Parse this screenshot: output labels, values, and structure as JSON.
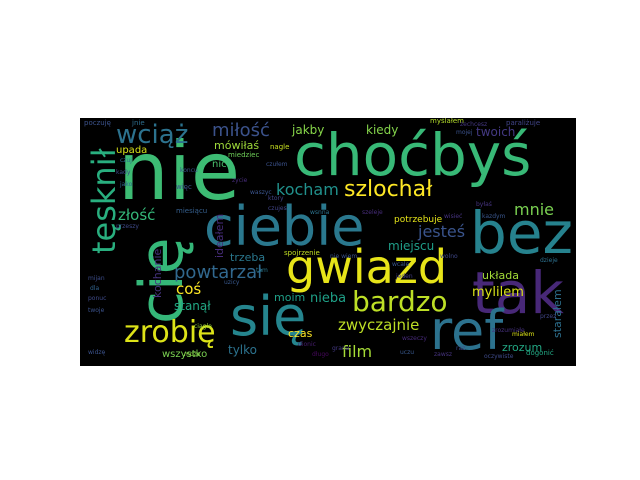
{
  "background": "#000000",
  "page_background": "#ffffff",
  "words": [
    {
      "text": "nie",
      "color": "#3dbc74"
    },
    {
      "text": "choćbyś",
      "color": "#38b977"
    },
    {
      "text": "ciebie",
      "color": "#2a788e"
    },
    {
      "text": "bez",
      "color": "#26828e"
    },
    {
      "text": "cię",
      "color": "#35b779"
    },
    {
      "text": "gwiazd",
      "color": "#e7e419"
    },
    {
      "text": "tak",
      "color": "#482878"
    },
    {
      "text": "się",
      "color": "#25858e"
    },
    {
      "text": "ref",
      "color": "#2c728e"
    },
    {
      "text": "zrobię",
      "color": "#dde318"
    },
    {
      "text": "bardzo",
      "color": "#bddf26"
    },
    {
      "text": "tęsknił",
      "color": "#29af7f"
    },
    {
      "text": "wciąż",
      "color": "#2c728e"
    },
    {
      "text": "miłość",
      "color": "#3b528b"
    },
    {
      "text": "szlochał",
      "color": "#fde725"
    },
    {
      "text": "kocham",
      "color": "#21918c"
    },
    {
      "text": "powtarzał",
      "color": "#31688e"
    },
    {
      "text": "jesteś",
      "color": "#3a548c"
    },
    {
      "text": "mnie",
      "color": "#7ad151"
    },
    {
      "text": "film",
      "color": "#a5db36"
    },
    {
      "text": "zwyczajnie",
      "color": "#bddf26"
    },
    {
      "text": "złość",
      "color": "#35b779"
    },
    {
      "text": "jakby",
      "color": "#86d549"
    },
    {
      "text": "kiedy",
      "color": "#84d44b"
    },
    {
      "text": "twoich",
      "color": "#443983"
    },
    {
      "text": "mówiłaś",
      "color": "#9fda3a"
    },
    {
      "text": "upada",
      "color": "#d8e219"
    },
    {
      "text": "nic",
      "color": "#4ac16d"
    },
    {
      "text": "miejscu",
      "color": "#1f9e89"
    },
    {
      "text": "potrzebuje",
      "color": "#e5e419"
    },
    {
      "text": "coś",
      "color": "#fde725"
    },
    {
      "text": "nieba",
      "color": "#1fa188"
    },
    {
      "text": "moim",
      "color": "#1fa088"
    },
    {
      "text": "stanął",
      "color": "#22a884"
    },
    {
      "text": "trzeba",
      "color": "#2a788e"
    },
    {
      "text": "ideałem",
      "color": "#472d7b"
    },
    {
      "text": "kochanie",
      "color": "#46337f"
    },
    {
      "text": "czas",
      "color": "#fde725"
    },
    {
      "text": "tylko",
      "color": "#2c728e"
    },
    {
      "text": "wszystko",
      "color": "#7ad151"
    },
    {
      "text": "mylilem",
      "color": "#dae319"
    },
    {
      "text": "układa",
      "color": "#a2da37"
    },
    {
      "text": "zrozum",
      "color": "#22a884"
    },
    {
      "text": "starałem",
      "color": "#2d708e"
    },
    {
      "text": "miesiącu",
      "color": "#355f8d"
    },
    {
      "text": "miedziec",
      "color": "#6ece58"
    },
    {
      "text": "więc",
      "color": "#3b528b"
    },
    {
      "text": "nagle",
      "color": "#c8e020"
    },
    {
      "text": "myślałem",
      "color": "#b5de2b"
    },
    {
      "text": "paraliżuje",
      "color": "#414487"
    },
    {
      "text": "poczuję",
      "color": "#3b528b"
    },
    {
      "text": "jnie",
      "color": "#2e6e8e"
    },
    {
      "text": "koncu",
      "color": "#3b528b"
    },
    {
      "text": "byłaś",
      "color": "#463480"
    },
    {
      "text": "kazdym",
      "color": "#39568c"
    },
    {
      "text": "zrozumiałe",
      "color": "#46317e"
    },
    {
      "text": "dzieje",
      "color": "#2d708e"
    },
    {
      "text": "przez",
      "color": "#404688"
    },
    {
      "text": "spojrzenie",
      "color": "#c2df23"
    },
    {
      "text": "dionic",
      "color": "#481d6f"
    },
    {
      "text": "miałem",
      "color": "#dde318"
    },
    {
      "text": "oczywiste",
      "color": "#3e4a89"
    },
    {
      "text": "dogonić",
      "color": "#22a884"
    },
    {
      "text": "długo",
      "color": "#46085c"
    },
    {
      "text": "może",
      "color": "#8bd646"
    },
    {
      "text": "widzę",
      "color": "#3b528b"
    },
    {
      "text": "kady",
      "color": "#3e4989"
    },
    {
      "text": "ciągle",
      "color": "#9dd93b"
    },
    {
      "text": "wisieć",
      "color": "#463480"
    },
    {
      "text": "zechcesz",
      "color": "#453882"
    },
    {
      "text": "uczu",
      "color": "#38588c"
    },
    {
      "text": "wszeczy",
      "color": "#472a7a"
    },
    {
      "text": "wolno",
      "color": "#3f4889"
    },
    {
      "text": "mijan",
      "color": "#3d4d8a"
    },
    {
      "text": "dla",
      "color": "#32648e"
    },
    {
      "text": "twoje",
      "color": "#3b528b"
    },
    {
      "text": "ponuc",
      "color": "#3e4a89"
    },
    {
      "text": "czuj",
      "color": "#2e6d8e"
    },
    {
      "text": "przeszy",
      "color": "#3e4a89"
    },
    {
      "text": "uzicy",
      "color": "#38588c"
    },
    {
      "text": "jako",
      "color": "#32648e"
    },
    {
      "text": "mojej",
      "color": "#3b528b"
    },
    {
      "text": "zycie",
      "color": "#472d7b"
    },
    {
      "text": "ktory",
      "color": "#414487"
    },
    {
      "text": "nie wiem",
      "color": "#3b528b"
    },
    {
      "text": "wsnna",
      "color": "#2c728e"
    },
    {
      "text": "szeleje",
      "color": "#472d7b"
    },
    {
      "text": "wcale",
      "color": "#39568c"
    },
    {
      "text": "jeden",
      "color": "#433e85"
    },
    {
      "text": "waszyc",
      "color": "#3a548c"
    },
    {
      "text": "czujes",
      "color": "#414487"
    },
    {
      "text": "czułem",
      "color": "#3b528b"
    },
    {
      "text": "grana",
      "color": "#443983"
    },
    {
      "text": "zawsz",
      "color": "#46337f"
    },
    {
      "text": "raz",
      "color": "#3e4989"
    },
    {
      "text": "tam",
      "color": "#2a788e"
    }
  ]
}
